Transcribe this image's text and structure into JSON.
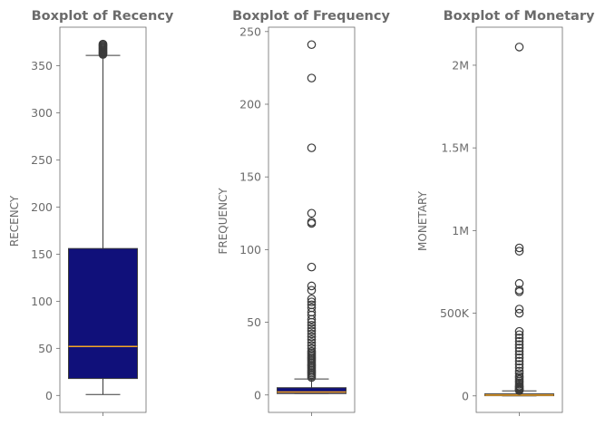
{
  "colors": {
    "box_fill": "#10107a",
    "median": "#f5a623",
    "outline": "#3a3a3a",
    "frame": "#6b6b6b",
    "text": "#6b6b6b",
    "background": "#ffffff"
  },
  "chart_data": [
    {
      "type": "boxplot",
      "title": "Boxplot of Recency",
      "ylabel": "RECENCY",
      "xlabel": "",
      "ylim": [
        -18,
        391
      ],
      "yticks": [
        0,
        50,
        100,
        150,
        200,
        250,
        300,
        350
      ],
      "ytick_labels": [
        "0",
        "50",
        "100",
        "150",
        "200",
        "250",
        "300",
        "350"
      ],
      "box": {
        "whisker_low": 1,
        "q1": 18,
        "median": 52,
        "q3": 156,
        "whisker_high": 361
      },
      "outliers": [
        362,
        363,
        364,
        365,
        366,
        367,
        368,
        369,
        370,
        371,
        372,
        373
      ]
    },
    {
      "type": "boxplot",
      "title": "Boxplot of Frequency",
      "ylabel": "FREQUENCY",
      "xlabel": "",
      "ylim": [
        -12,
        253
      ],
      "yticks": [
        0,
        50,
        100,
        150,
        200,
        250
      ],
      "ytick_labels": [
        "0",
        "50",
        "100",
        "150",
        "200",
        "250"
      ],
      "box": {
        "whisker_low": 1,
        "q1": 1,
        "median": 2,
        "q3": 5,
        "whisker_high": 11
      },
      "outliers": [
        12,
        13,
        14,
        15,
        16,
        17,
        18,
        19,
        20,
        21,
        22,
        23,
        24,
        25,
        26,
        27,
        28,
        29,
        30,
        32,
        34,
        36,
        38,
        40,
        42,
        44,
        46,
        48,
        50,
        52,
        55,
        57,
        60,
        62,
        64,
        66,
        72,
        75,
        88,
        118,
        119,
        125,
        170,
        218,
        241
      ]
    },
    {
      "type": "boxplot",
      "title": "Boxplot of Monetary",
      "ylabel": "MONETARY",
      "xlabel": "",
      "ylim": [
        -100000,
        2230000
      ],
      "yticks": [
        0,
        500000,
        1000000,
        1500000,
        2000000
      ],
      "ytick_labels": [
        "0",
        "500K",
        "1M",
        "1.5M",
        "2M"
      ],
      "box": {
        "whisker_low": 0,
        "q1": 1000,
        "median": 5000,
        "q3": 12000,
        "whisker_high": 30000
      },
      "outliers": [
        32000,
        36000,
        40000,
        45000,
        50000,
        55000,
        60000,
        70000,
        80000,
        90000,
        100000,
        110000,
        120000,
        135000,
        150000,
        170000,
        190000,
        210000,
        230000,
        250000,
        270000,
        290000,
        310000,
        330000,
        350000,
        370000,
        390000,
        500000,
        525000,
        630000,
        640000,
        680000,
        875000,
        895000,
        2110000
      ]
    }
  ]
}
